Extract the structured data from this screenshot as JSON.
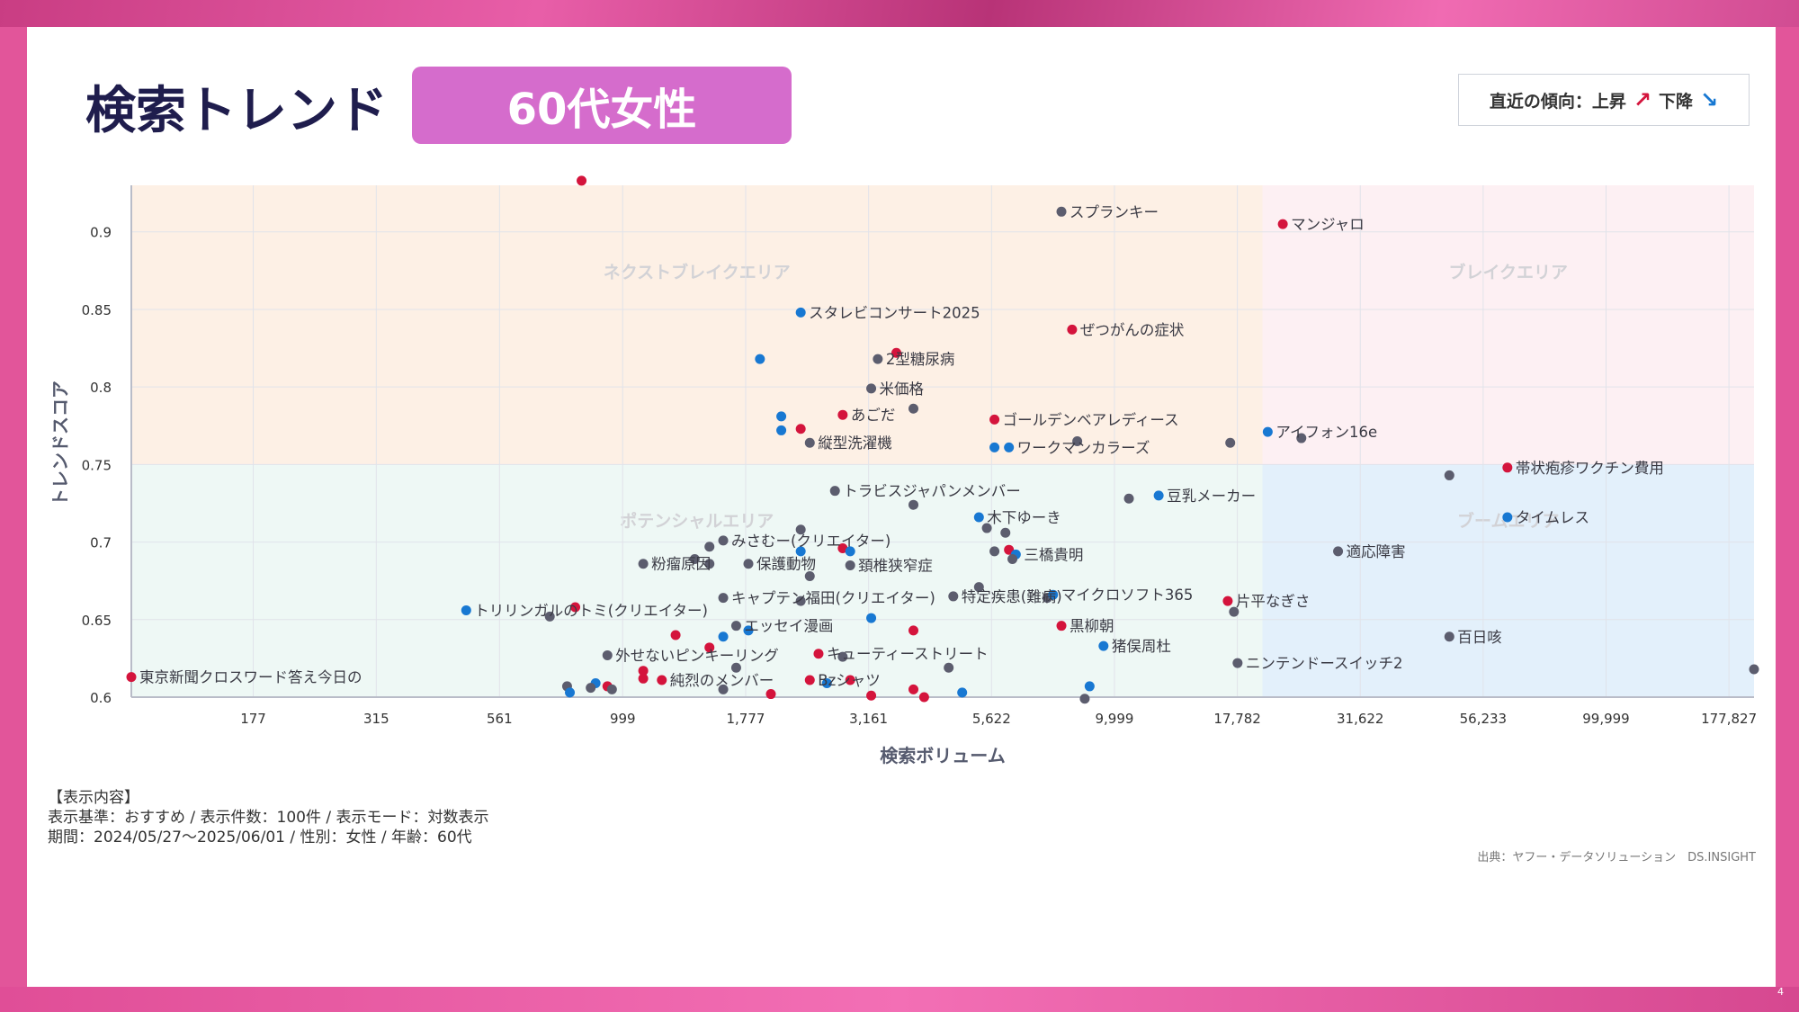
{
  "header": {
    "title": "検索トレンド",
    "badge": "60代女性"
  },
  "legend": {
    "label": "直近の傾向：上昇",
    "down_label": "下降",
    "up_icon": "arrow-up-icon",
    "down_icon": "arrow-down-icon",
    "up_color": "#d4143c",
    "down_color": "#1878d2",
    "neutral_color": "#5c5d6e"
  },
  "notes": {
    "heading": "【表示内容】",
    "line1": "表示基準：おすすめ / 表示件数：100件 / 表示モード：対数表示",
    "line2": "期間：2024/05/27〜2025/06/01 / 性別：女性 / 年齢：60代"
  },
  "source": "出典：ヤフー・データソリューション　DS.INSIGHT",
  "page_number": "4",
  "chart_data": {
    "type": "scatter",
    "title": "",
    "xlabel": "検索ボリューム",
    "ylabel": "トレンドスコア",
    "x_scale": "log",
    "xlim": [
      100,
      200000
    ],
    "ylim": [
      0.6,
      0.93
    ],
    "x_ticks": [
      177,
      315,
      561,
      999,
      1777,
      3161,
      5622,
      9999,
      17782,
      31622,
      56233,
      99999,
      177827
    ],
    "x_tick_labels": [
      "177",
      "315",
      "561",
      "999",
      "1,777",
      "3,161",
      "5,622",
      "9,999",
      "17,782",
      "31,622",
      "56,233",
      "99,999",
      "177,827"
    ],
    "y_ticks": [
      0.6,
      0.65,
      0.7,
      0.75,
      0.8,
      0.85,
      0.9
    ],
    "y_tick_labels": [
      "0.6",
      "0.65",
      "0.7",
      "0.75",
      "0.8",
      "0.85",
      "0.9"
    ],
    "grid": true,
    "quadrants": [
      {
        "name": "ネクストブレイクエリア",
        "x": [
          100,
          20000
        ],
        "y": [
          0.75,
          0.93
        ],
        "color": "#fdf0e5"
      },
      {
        "name": "ブレイクエリア",
        "x": [
          20000,
          200000
        ],
        "y": [
          0.75,
          0.93
        ],
        "color": "#fdf0f3"
      },
      {
        "name": "ポテンシャルエリア",
        "x": [
          100,
          20000
        ],
        "y": [
          0.6,
          0.75
        ],
        "color": "#eef8f5"
      },
      {
        "name": "ブームエリア",
        "x": [
          20000,
          200000
        ],
        "y": [
          0.6,
          0.75
        ],
        "color": "#e3f0fb"
      }
    ],
    "points": [
      {
        "label": "",
        "x": 824,
        "y": 0.933,
        "trend": "up"
      },
      {
        "label": "スプランキー",
        "x": 7800,
        "y": 0.913,
        "trend": "neutral"
      },
      {
        "label": "マンジャロ",
        "x": 22000,
        "y": 0.905,
        "trend": "up"
      },
      {
        "label": "スタレビコンサート2025",
        "x": 2300,
        "y": 0.848,
        "trend": "down"
      },
      {
        "label": "ぜつがんの症状",
        "x": 8200,
        "y": 0.837,
        "trend": "up"
      },
      {
        "label": "",
        "x": 3600,
        "y": 0.822,
        "trend": "up"
      },
      {
        "label": "2型糖尿病",
        "x": 3300,
        "y": 0.818,
        "trend": "neutral"
      },
      {
        "label": "",
        "x": 1900,
        "y": 0.818,
        "trend": "down"
      },
      {
        "label": "米価格",
        "x": 3200,
        "y": 0.799,
        "trend": "neutral"
      },
      {
        "label": "",
        "x": 3900,
        "y": 0.786,
        "trend": "neutral"
      },
      {
        "label": "あごだ",
        "x": 2800,
        "y": 0.782,
        "trend": "up"
      },
      {
        "label": "",
        "x": 2100,
        "y": 0.781,
        "trend": "down"
      },
      {
        "label": "ゴールデンベアレディース",
        "x": 5700,
        "y": 0.779,
        "trend": "up"
      },
      {
        "label": "",
        "x": 2100,
        "y": 0.772,
        "trend": "down"
      },
      {
        "label": "",
        "x": 2300,
        "y": 0.773,
        "trend": "up"
      },
      {
        "label": "アイフォン16e",
        "x": 20500,
        "y": 0.771,
        "trend": "down"
      },
      {
        "label": "",
        "x": 24000,
        "y": 0.767,
        "trend": "neutral"
      },
      {
        "label": "",
        "x": 17200,
        "y": 0.764,
        "trend": "neutral"
      },
      {
        "label": "縦型洗濯機",
        "x": 2400,
        "y": 0.764,
        "trend": "neutral"
      },
      {
        "label": "",
        "x": 8400,
        "y": 0.765,
        "trend": "neutral"
      },
      {
        "label": "",
        "x": 5700,
        "y": 0.761,
        "trend": "down"
      },
      {
        "label": "ワークマンカラーズ",
        "x": 6100,
        "y": 0.761,
        "trend": "down"
      },
      {
        "label": "帯状疱疹ワクチン費用",
        "x": 63000,
        "y": 0.748,
        "trend": "up"
      },
      {
        "label": "",
        "x": 48000,
        "y": 0.743,
        "trend": "neutral"
      },
      {
        "label": "トラビスジャパンメンバー",
        "x": 2700,
        "y": 0.733,
        "trend": "neutral"
      },
      {
        "label": "豆乳メーカー",
        "x": 12300,
        "y": 0.73,
        "trend": "down"
      },
      {
        "label": "",
        "x": 10700,
        "y": 0.728,
        "trend": "neutral"
      },
      {
        "label": "",
        "x": 3900,
        "y": 0.724,
        "trend": "neutral"
      },
      {
        "label": "タイムレス",
        "x": 63000,
        "y": 0.716,
        "trend": "down"
      },
      {
        "label": "木下ゆーき",
        "x": 5300,
        "y": 0.716,
        "trend": "down"
      },
      {
        "label": "",
        "x": 5500,
        "y": 0.709,
        "trend": "neutral"
      },
      {
        "label": "",
        "x": 6000,
        "y": 0.706,
        "trend": "neutral"
      },
      {
        "label": "",
        "x": 2300,
        "y": 0.708,
        "trend": "neutral"
      },
      {
        "label": "みさむー(クリエイター)",
        "x": 1600,
        "y": 0.701,
        "trend": "neutral"
      },
      {
        "label": "",
        "x": 1500,
        "y": 0.697,
        "trend": "neutral"
      },
      {
        "label": "",
        "x": 2800,
        "y": 0.696,
        "trend": "up"
      },
      {
        "label": "",
        "x": 2900,
        "y": 0.694,
        "trend": "down"
      },
      {
        "label": "",
        "x": 2300,
        "y": 0.694,
        "trend": "down"
      },
      {
        "label": "",
        "x": 6100,
        "y": 0.695,
        "trend": "up"
      },
      {
        "label": "",
        "x": 5700,
        "y": 0.694,
        "trend": "neutral"
      },
      {
        "label": "三橋貴明",
        "x": 6300,
        "y": 0.692,
        "trend": "down"
      },
      {
        "label": "適応障害",
        "x": 28500,
        "y": 0.694,
        "trend": "neutral"
      },
      {
        "label": "",
        "x": 6200,
        "y": 0.689,
        "trend": "neutral"
      },
      {
        "label": "",
        "x": 1400,
        "y": 0.689,
        "trend": "neutral"
      },
      {
        "label": "粉瘤原因",
        "x": 1100,
        "y": 0.686,
        "trend": "neutral"
      },
      {
        "label": "",
        "x": 1500,
        "y": 0.686,
        "trend": "neutral"
      },
      {
        "label": "保護動物",
        "x": 1800,
        "y": 0.686,
        "trend": "neutral"
      },
      {
        "label": "頚椎狭窄症",
        "x": 2900,
        "y": 0.685,
        "trend": "neutral"
      },
      {
        "label": "",
        "x": 2400,
        "y": 0.678,
        "trend": "neutral"
      },
      {
        "label": "",
        "x": 5300,
        "y": 0.671,
        "trend": "neutral"
      },
      {
        "label": "キャプテン福田(クリエイター)",
        "x": 1600,
        "y": 0.664,
        "trend": "neutral"
      },
      {
        "label": "",
        "x": 2300,
        "y": 0.662,
        "trend": "neutral"
      },
      {
        "label": "特定疾患(難病)",
        "x": 4700,
        "y": 0.665,
        "trend": "neutral"
      },
      {
        "label": "",
        "x": 7300,
        "y": 0.664,
        "trend": "neutral"
      },
      {
        "label": "マイクロソフト365",
        "x": 7500,
        "y": 0.666,
        "trend": "down"
      },
      {
        "label": "片平なぎさ",
        "x": 17000,
        "y": 0.662,
        "trend": "up"
      },
      {
        "label": "",
        "x": 17500,
        "y": 0.655,
        "trend": "neutral"
      },
      {
        "label": "トリリンガルのトミ(クリエイター)",
        "x": 480,
        "y": 0.656,
        "trend": "down"
      },
      {
        "label": "",
        "x": 800,
        "y": 0.658,
        "trend": "up"
      },
      {
        "label": "",
        "x": 710,
        "y": 0.652,
        "trend": "neutral"
      },
      {
        "label": "",
        "x": 3200,
        "y": 0.651,
        "trend": "down"
      },
      {
        "label": "エッセイ漫画",
        "x": 1700,
        "y": 0.646,
        "trend": "neutral"
      },
      {
        "label": "",
        "x": 1800,
        "y": 0.643,
        "trend": "down"
      },
      {
        "label": "黒柳朝",
        "x": 7800,
        "y": 0.646,
        "trend": "up"
      },
      {
        "label": "",
        "x": 3900,
        "y": 0.643,
        "trend": "up"
      },
      {
        "label": "",
        "x": 1600,
        "y": 0.639,
        "trend": "down"
      },
      {
        "label": "",
        "x": 1280,
        "y": 0.64,
        "trend": "up"
      },
      {
        "label": "百日咳",
        "x": 48000,
        "y": 0.639,
        "trend": "neutral"
      },
      {
        "label": "猪俣周杜",
        "x": 9500,
        "y": 0.633,
        "trend": "down"
      },
      {
        "label": "",
        "x": 1500,
        "y": 0.632,
        "trend": "up"
      },
      {
        "label": "キューティーストリート",
        "x": 2500,
        "y": 0.628,
        "trend": "up"
      },
      {
        "label": "外せないピンキーリング",
        "x": 930,
        "y": 0.627,
        "trend": "neutral"
      },
      {
        "label": "",
        "x": 2800,
        "y": 0.626,
        "trend": "neutral"
      },
      {
        "label": "ニンテンドースイッチ2",
        "x": 17800,
        "y": 0.622,
        "trend": "neutral"
      },
      {
        "label": "",
        "x": 4600,
        "y": 0.619,
        "trend": "neutral"
      },
      {
        "label": "",
        "x": 1700,
        "y": 0.619,
        "trend": "neutral"
      },
      {
        "label": "",
        "x": 1100,
        "y": 0.617,
        "trend": "up"
      },
      {
        "label": "",
        "x": 200000,
        "y": 0.618,
        "trend": "neutral"
      },
      {
        "label": "東京新聞クロスワード答え今日の",
        "x": 100,
        "y": 0.613,
        "trend": "up"
      },
      {
        "label": "",
        "x": 1100,
        "y": 0.612,
        "trend": "up"
      },
      {
        "label": "純烈のメンバー",
        "x": 1200,
        "y": 0.611,
        "trend": "up"
      },
      {
        "label": "Bzシャツ",
        "x": 2400,
        "y": 0.611,
        "trend": "up"
      },
      {
        "label": "",
        "x": 2900,
        "y": 0.611,
        "trend": "up"
      },
      {
        "label": "",
        "x": 2600,
        "y": 0.609,
        "trend": "down"
      },
      {
        "label": "",
        "x": 880,
        "y": 0.609,
        "trend": "down"
      },
      {
        "label": "",
        "x": 930,
        "y": 0.607,
        "trend": "up"
      },
      {
        "label": "",
        "x": 770,
        "y": 0.607,
        "trend": "neutral"
      },
      {
        "label": "",
        "x": 860,
        "y": 0.606,
        "trend": "neutral"
      },
      {
        "label": "",
        "x": 950,
        "y": 0.605,
        "trend": "neutral"
      },
      {
        "label": "",
        "x": 8900,
        "y": 0.607,
        "trend": "down"
      },
      {
        "label": "",
        "x": 1600,
        "y": 0.605,
        "trend": "neutral"
      },
      {
        "label": "",
        "x": 3900,
        "y": 0.605,
        "trend": "up"
      },
      {
        "label": "",
        "x": 4900,
        "y": 0.603,
        "trend": "down"
      },
      {
        "label": "",
        "x": 780,
        "y": 0.603,
        "trend": "down"
      },
      {
        "label": "",
        "x": 2000,
        "y": 0.602,
        "trend": "up"
      },
      {
        "label": "",
        "x": 3200,
        "y": 0.601,
        "trend": "up"
      },
      {
        "label": "",
        "x": 4100,
        "y": 0.6,
        "trend": "up"
      },
      {
        "label": "",
        "x": 8700,
        "y": 0.599,
        "trend": "neutral"
      }
    ]
  }
}
